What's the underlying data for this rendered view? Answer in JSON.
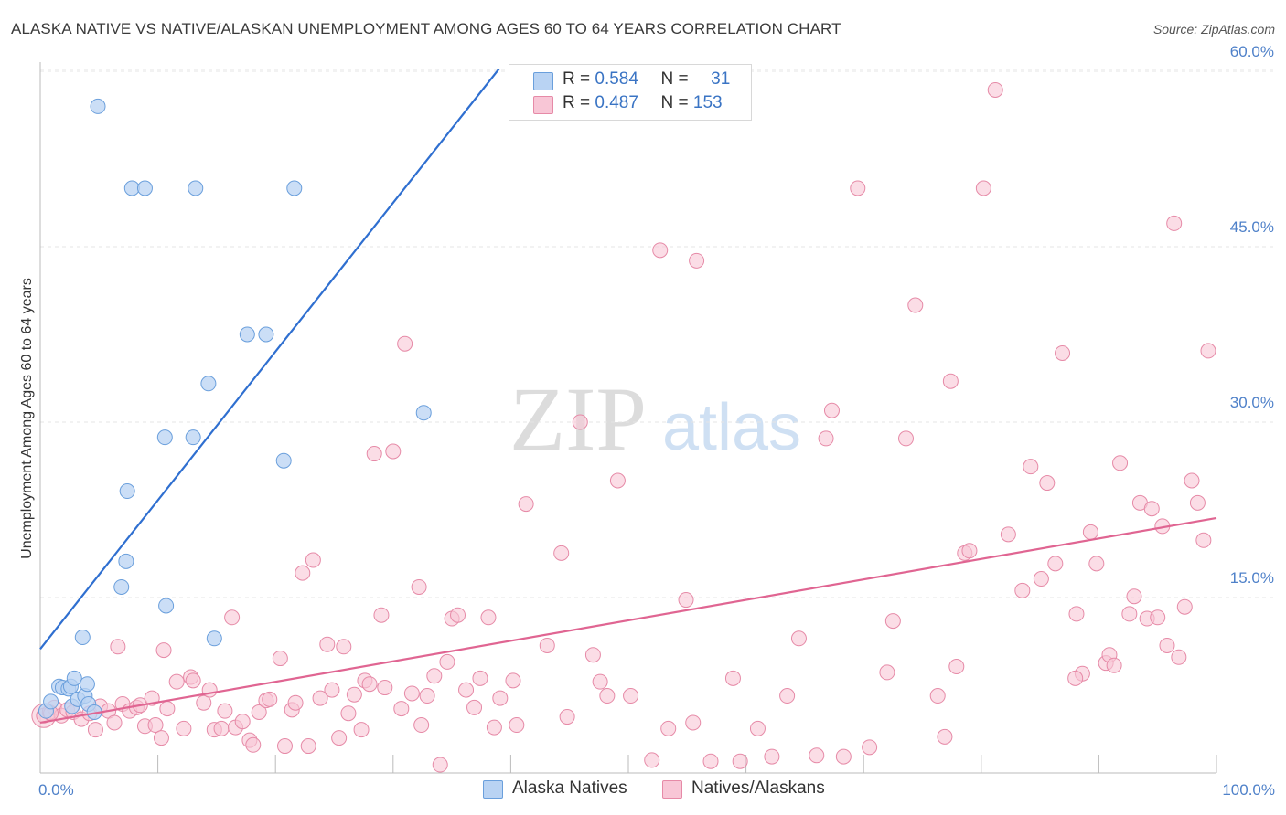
{
  "title": "ALASKA NATIVE VS NATIVE/ALASKAN UNEMPLOYMENT AMONG AGES 60 TO 64 YEARS CORRELATION CHART",
  "source": "Source: ZipAtlas.com",
  "watermark": {
    "zip": "ZIP",
    "atlas": "atlas"
  },
  "legend": {
    "series1": {
      "r_label": "R =",
      "r_value": "0.584",
      "n_label": "N =",
      "n_value": "31"
    },
    "series2": {
      "r_label": "R =",
      "r_value": "0.487",
      "n_label": "N =",
      "n_value": "153"
    }
  },
  "colors": {
    "blue_fill": "#b9d3f3",
    "blue_stroke": "#6a9fdc",
    "blue_line": "#2f6fd0",
    "pink_fill": "#f8c6d6",
    "pink_stroke": "#e68aa7",
    "pink_line": "#e06592",
    "tick_label": "#4f81c9",
    "grid": "#e5e5e5"
  },
  "chart_data": {
    "type": "scatter",
    "title": "ALASKA NATIVE VS NATIVE/ALASKAN UNEMPLOYMENT AMONG AGES 60 TO 64 YEARS CORRELATION CHART",
    "xlabel": "",
    "ylabel": "Unemployment Among Ages 60 to 64 years",
    "xlim": [
      0,
      100
    ],
    "ylim": [
      0,
      62
    ],
    "x_tick_labels": [
      "0.0%",
      "100.0%"
    ],
    "y_ticks": [
      15,
      30,
      45,
      60
    ],
    "y_tick_labels": [
      "15.0%",
      "30.0%",
      "45.0%",
      "60.0%"
    ],
    "grid": true,
    "series": [
      {
        "name": "Alaska Natives",
        "r": 0.584,
        "n": 31,
        "trend": {
          "x": [
            0,
            39
          ],
          "y": [
            10.6,
            60.2
          ]
        },
        "points": [
          [
            0.5,
            5.3
          ],
          [
            0.9,
            6.1
          ],
          [
            1.6,
            7.4
          ],
          [
            1.9,
            7.3
          ],
          [
            2.4,
            7.2
          ],
          [
            2.7,
            5.7
          ],
          [
            2.6,
            7.4
          ],
          [
            2.9,
            8.1
          ],
          [
            3.2,
            6.3
          ],
          [
            3.8,
            6.6
          ],
          [
            4.0,
            7.6
          ],
          [
            4.1,
            5.9
          ],
          [
            4.6,
            5.2
          ],
          [
            3.6,
            11.6
          ],
          [
            4.9,
            57
          ],
          [
            6.9,
            15.9
          ],
          [
            7.3,
            18.1
          ],
          [
            7.4,
            24.1
          ],
          [
            7.8,
            50
          ],
          [
            8.9,
            50
          ],
          [
            10.7,
            14.3
          ],
          [
            10.6,
            28.7
          ],
          [
            13.0,
            28.7
          ],
          [
            13.2,
            50
          ],
          [
            14.3,
            33.3
          ],
          [
            14.8,
            11.5
          ],
          [
            17.6,
            37.5
          ],
          [
            19.2,
            37.5
          ],
          [
            20.7,
            26.7
          ],
          [
            21.6,
            50
          ],
          [
            32.6,
            30.8
          ]
        ]
      },
      {
        "name": "Natives/Alaskans",
        "r": 0.487,
        "n": 153,
        "trend": {
          "x": [
            0,
            100
          ],
          "y": [
            4.3,
            21.8
          ]
        },
        "points": [
          [
            0.3,
            4.9
          ],
          [
            0.8,
            5.2
          ],
          [
            1.2,
            5.6
          ],
          [
            1.8,
            4.9
          ],
          [
            2.3,
            5.4
          ],
          [
            2.8,
            5.2
          ],
          [
            3.5,
            4.6
          ],
          [
            4.2,
            5.1
          ],
          [
            4.7,
            3.7
          ],
          [
            5.1,
            5.7
          ],
          [
            5.8,
            5.3
          ],
          [
            6.3,
            4.3
          ],
          [
            7.0,
            5.9
          ],
          [
            6.6,
            10.8
          ],
          [
            7.6,
            5.3
          ],
          [
            8.2,
            5.6
          ],
          [
            8.5,
            5.8
          ],
          [
            8.9,
            4.0
          ],
          [
            9.5,
            6.4
          ],
          [
            9.8,
            4.1
          ],
          [
            10.3,
            3.0
          ],
          [
            10.8,
            5.5
          ],
          [
            10.5,
            10.5
          ],
          [
            11.6,
            7.8
          ],
          [
            12.2,
            3.8
          ],
          [
            12.8,
            8.2
          ],
          [
            13.0,
            7.9
          ],
          [
            13.9,
            6.0
          ],
          [
            14.4,
            7.1
          ],
          [
            14.8,
            3.7
          ],
          [
            15.4,
            3.8
          ],
          [
            15.7,
            5.3
          ],
          [
            16.3,
            13.3
          ],
          [
            16.6,
            3.9
          ],
          [
            17.2,
            4.4
          ],
          [
            17.8,
            2.8
          ],
          [
            18.1,
            2.4
          ],
          [
            18.6,
            5.2
          ],
          [
            19.2,
            6.2
          ],
          [
            19.5,
            6.3
          ],
          [
            20.4,
            9.8
          ],
          [
            20.8,
            2.3
          ],
          [
            21.4,
            5.4
          ],
          [
            21.7,
            6.0
          ],
          [
            22.3,
            17.1
          ],
          [
            22.8,
            2.3
          ],
          [
            23.2,
            18.2
          ],
          [
            23.8,
            6.4
          ],
          [
            24.4,
            11.0
          ],
          [
            24.8,
            7.1
          ],
          [
            25.4,
            3.0
          ],
          [
            25.8,
            10.8
          ],
          [
            26.2,
            5.1
          ],
          [
            26.7,
            6.7
          ],
          [
            27.3,
            3.7
          ],
          [
            27.6,
            7.9
          ],
          [
            28.0,
            7.6
          ],
          [
            28.4,
            27.3
          ],
          [
            29.0,
            13.5
          ],
          [
            29.3,
            7.3
          ],
          [
            30.0,
            27.5
          ],
          [
            30.7,
            5.5
          ],
          [
            31.0,
            36.7
          ],
          [
            31.6,
            6.8
          ],
          [
            32.2,
            15.9
          ],
          [
            32.4,
            4.1
          ],
          [
            32.9,
            6.6
          ],
          [
            33.5,
            8.3
          ],
          [
            34.0,
            0.7
          ],
          [
            34.6,
            9.5
          ],
          [
            35.0,
            13.2
          ],
          [
            35.5,
            13.5
          ],
          [
            36.2,
            7.1
          ],
          [
            36.9,
            5.6
          ],
          [
            37.4,
            8.1
          ],
          [
            38.1,
            13.3
          ],
          [
            38.6,
            3.9
          ],
          [
            39.1,
            6.4
          ],
          [
            40.2,
            7.9
          ],
          [
            40.5,
            4.1
          ],
          [
            41.3,
            23.0
          ],
          [
            43.1,
            10.9
          ],
          [
            44.3,
            18.8
          ],
          [
            44.8,
            4.8
          ],
          [
            45.9,
            30.0
          ],
          [
            47.0,
            10.1
          ],
          [
            47.6,
            7.8
          ],
          [
            48.2,
            6.6
          ],
          [
            49.1,
            25.0
          ],
          [
            50.2,
            6.6
          ],
          [
            52.0,
            1.1
          ],
          [
            52.7,
            44.7
          ],
          [
            53.4,
            3.8
          ],
          [
            54.9,
            14.8
          ],
          [
            55.5,
            4.3
          ],
          [
            55.8,
            43.8
          ],
          [
            57.0,
            1.0
          ],
          [
            58.9,
            8.1
          ],
          [
            59.5,
            1.0
          ],
          [
            61.0,
            3.8
          ],
          [
            62.2,
            1.4
          ],
          [
            63.5,
            6.6
          ],
          [
            64.5,
            11.5
          ],
          [
            66.0,
            1.5
          ],
          [
            66.8,
            28.6
          ],
          [
            67.3,
            31.0
          ],
          [
            68.3,
            1.4
          ],
          [
            69.5,
            50.0
          ],
          [
            70.5,
            2.2
          ],
          [
            72.0,
            8.6
          ],
          [
            72.5,
            13.0
          ],
          [
            73.6,
            28.6
          ],
          [
            74.4,
            40.0
          ],
          [
            76.3,
            6.6
          ],
          [
            76.9,
            3.1
          ],
          [
            77.4,
            33.5
          ],
          [
            77.9,
            9.1
          ],
          [
            78.6,
            18.8
          ],
          [
            79.0,
            19.0
          ],
          [
            80.2,
            50.0
          ],
          [
            81.2,
            58.4
          ],
          [
            82.3,
            20.4
          ],
          [
            83.5,
            15.6
          ],
          [
            84.2,
            26.2
          ],
          [
            85.1,
            16.6
          ],
          [
            85.6,
            24.8
          ],
          [
            86.3,
            17.9
          ],
          [
            86.9,
            35.9
          ],
          [
            88.1,
            13.6
          ],
          [
            88.6,
            8.5
          ],
          [
            89.3,
            20.6
          ],
          [
            89.8,
            17.9
          ],
          [
            90.6,
            9.4
          ],
          [
            90.9,
            10.1
          ],
          [
            91.3,
            9.2
          ],
          [
            91.8,
            26.5
          ],
          [
            92.6,
            13.6
          ],
          [
            93.0,
            15.1
          ],
          [
            93.5,
            23.1
          ],
          [
            94.1,
            13.2
          ],
          [
            94.5,
            22.6
          ],
          [
            95.0,
            13.3
          ],
          [
            95.4,
            21.1
          ],
          [
            95.8,
            10.9
          ],
          [
            96.4,
            47.0
          ],
          [
            96.8,
            9.9
          ],
          [
            97.3,
            14.2
          ],
          [
            97.9,
            25.0
          ],
          [
            98.4,
            23.1
          ],
          [
            98.9,
            19.9
          ],
          [
            99.3,
            36.1
          ],
          [
            0.9,
            5.1
          ],
          [
            88.0,
            8.1
          ]
        ]
      }
    ]
  }
}
